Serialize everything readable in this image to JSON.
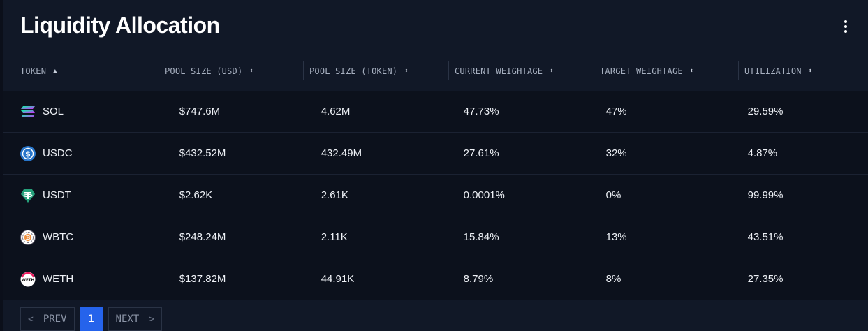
{
  "header": {
    "title": "Liquidity Allocation",
    "menu_icon": "kebab-menu-icon"
  },
  "columns": [
    {
      "label": "TOKEN",
      "sort": "▲"
    },
    {
      "label": "POOL SIZE (USD)",
      "sort": "⬍"
    },
    {
      "label": "POOL SIZE (TOKEN)",
      "sort": "⬍"
    },
    {
      "label": "CURRENT WEIGHTAGE",
      "sort": "⬍"
    },
    {
      "label": "TARGET WEIGHTAGE",
      "sort": "⬍"
    },
    {
      "label": "UTILIZATION",
      "sort": "⬍"
    }
  ],
  "rows": [
    {
      "token": "SOL",
      "icon": "sol-icon",
      "pool_usd": "$747.6M",
      "pool_token": "4.62M",
      "current": "47.73%",
      "target": "47%",
      "utilization": "29.59%"
    },
    {
      "token": "USDC",
      "icon": "usdc-icon",
      "pool_usd": "$432.52M",
      "pool_token": "432.49M",
      "current": "27.61%",
      "target": "32%",
      "utilization": "4.87%"
    },
    {
      "token": "USDT",
      "icon": "usdt-icon",
      "pool_usd": "$2.62K",
      "pool_token": "2.61K",
      "current": "0.0001%",
      "target": "0%",
      "utilization": "99.99%"
    },
    {
      "token": "WBTC",
      "icon": "wbtc-icon",
      "pool_usd": "$248.24M",
      "pool_token": "2.11K",
      "current": "15.84%",
      "target": "13%",
      "utilization": "43.51%"
    },
    {
      "token": "WETH",
      "icon": "weth-icon",
      "pool_usd": "$137.82M",
      "pool_token": "44.91K",
      "current": "8.79%",
      "target": "8%",
      "utilization": "27.35%"
    }
  ],
  "pagination": {
    "prev": "PREV",
    "next": "NEXT",
    "current_page": "1",
    "prev_icon": "chevron-left-icon",
    "next_icon": "chevron-right-icon"
  },
  "icon_text": {
    "weth": "WETH"
  },
  "colors": {
    "accent": "#2563eb",
    "background": "#111827",
    "row": "#0c111c"
  }
}
